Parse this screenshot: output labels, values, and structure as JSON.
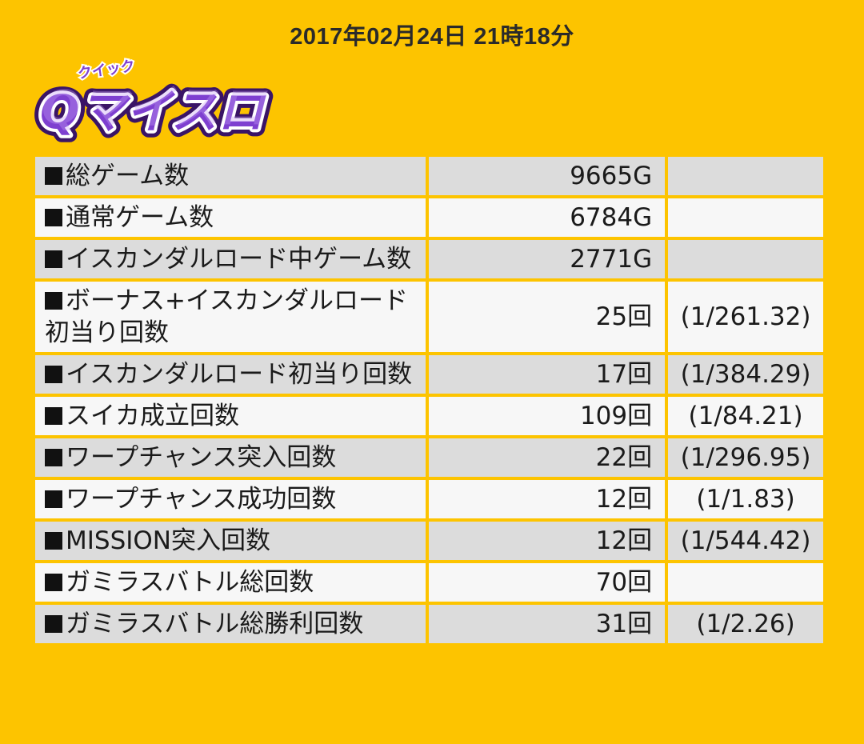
{
  "header": {
    "timestamp": "2017年02月24日 21時18分"
  },
  "logo": {
    "ruby": "クイック",
    "title": "Qマイスロ",
    "colors": {
      "outer": "#3A1466",
      "fill": "#7E3FD0",
      "highlight": "#C7A1F5",
      "outline": "#FFFFFF"
    }
  },
  "theme": {
    "background": "#FDC400",
    "row_gray": "#DCDCDC",
    "row_white": "#F7F7F7",
    "bullet": "#111111"
  },
  "stats": [
    {
      "label": "総ゲーム数",
      "value": "9665G",
      "ratio": ""
    },
    {
      "label": "通常ゲーム数",
      "value": "6784G",
      "ratio": ""
    },
    {
      "label": "イスカンダルロード中ゲーム数",
      "value": "2771G",
      "ratio": ""
    },
    {
      "label": "ボーナス+イスカンダルロード初当り回数",
      "value": "25回",
      "ratio": "(1/261.32)"
    },
    {
      "label": "イスカンダルロード初当り回数",
      "value": "17回",
      "ratio": "(1/384.29)"
    },
    {
      "label": "スイカ成立回数",
      "value": "109回",
      "ratio": "(1/84.21)"
    },
    {
      "label": "ワープチャンス突入回数",
      "value": "22回",
      "ratio": "(1/296.95)"
    },
    {
      "label": "ワープチャンス成功回数",
      "value": "12回",
      "ratio": "(1/1.83)"
    },
    {
      "label": "MISSION突入回数",
      "value": "12回",
      "ratio": "(1/544.42)"
    },
    {
      "label": "ガミラスバトル総回数",
      "value": "70回",
      "ratio": ""
    },
    {
      "label": "ガミラスバトル総勝利回数",
      "value": "31回",
      "ratio": "(1/2.26)"
    }
  ]
}
